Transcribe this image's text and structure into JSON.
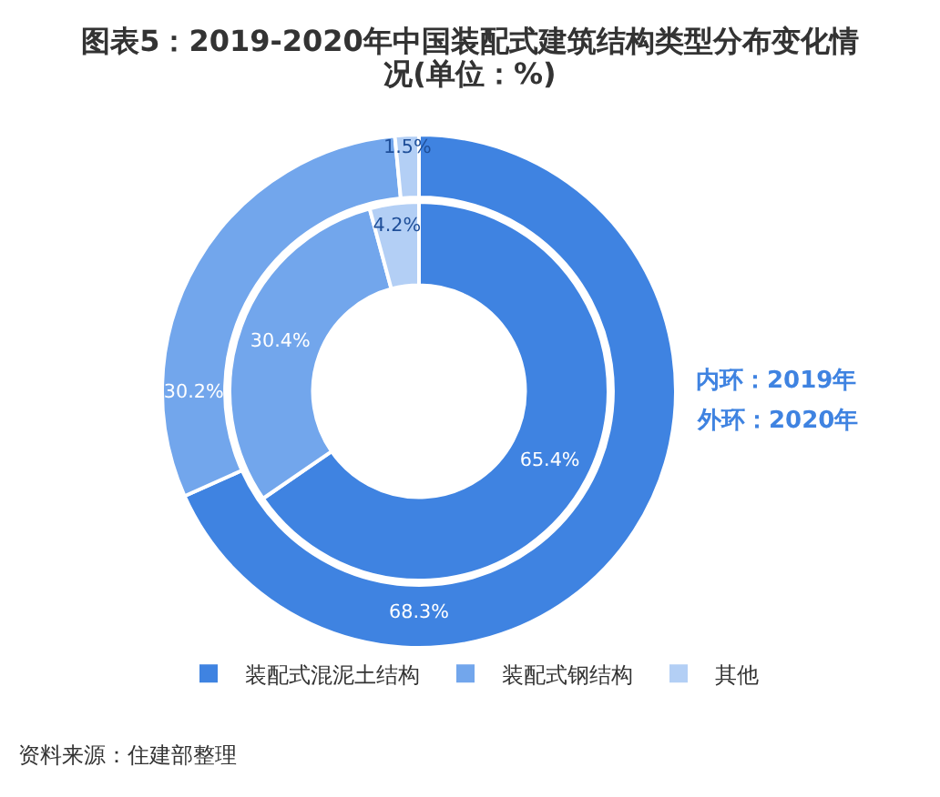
{
  "chart_data": {
    "type": "donut",
    "title": "图表5：2019-2020年中国装配式建筑结构类型分布变化情况(单位：%)",
    "categories": [
      "装配式混泥土结构",
      "装配式钢结构",
      "其他"
    ],
    "colors": [
      "#3f83e1",
      "#72a6ec",
      "#b3cff5"
    ],
    "series": [
      {
        "values": [
          65.4,
          30.4,
          4.2
        ],
        "value_labels": [
          "65.4%",
          "30.4%",
          "4.2%"
        ]
      },
      {
        "values": [
          68.3,
          30.2,
          1.5
        ],
        "value_labels": [
          "68.3%",
          "30.2%",
          "1.5%"
        ]
      }
    ],
    "legend": "bottom",
    "annotations": [
      "内环：2019年",
      "外环：2020年",
      "资料来源：住建部整理"
    ]
  }
}
